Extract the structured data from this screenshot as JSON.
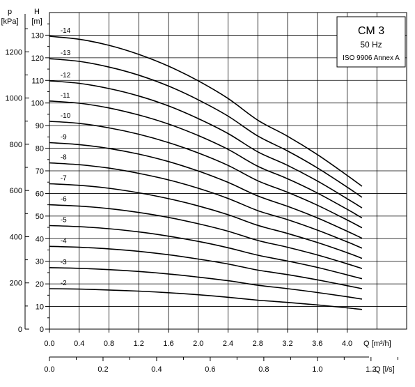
{
  "chart_data": {
    "type": "line",
    "legend": {
      "model": "CM 3",
      "frequency": "50 Hz",
      "standard": "ISO 9906 Annex A",
      "placement": "top-right"
    },
    "axes": {
      "y_left_outer": {
        "label_symbol": "p",
        "label_unit": "[kPa]",
        "ticks": [
          "0",
          "200",
          "400",
          "600",
          "800",
          "1000",
          "1200"
        ],
        "range": [
          0,
          1370
        ]
      },
      "y_left_inner": {
        "label_symbol": "H",
        "label_unit": "[m]",
        "ticks": [
          "0",
          "10",
          "20",
          "30",
          "40",
          "50",
          "60",
          "70",
          "80",
          "90",
          "100",
          "110",
          "120",
          "130"
        ],
        "range": [
          0,
          140
        ]
      },
      "x_bottom_upper": {
        "label": "Q [m³/h]",
        "ticks": [
          "0.0",
          "0.4",
          "0.8",
          "1.2",
          "1.6",
          "2.0",
          "2.4",
          "2.8",
          "3.2",
          "3.6",
          "4.0"
        ],
        "range": [
          0,
          4.8
        ]
      },
      "x_bottom_lower": {
        "label": "Q [l/s]",
        "ticks": [
          "0.0",
          "0.2",
          "0.4",
          "0.6",
          "0.8",
          "1.0",
          "1.2"
        ],
        "range": [
          0,
          1.333
        ]
      }
    },
    "grid": true,
    "x": [
      0.0,
      0.4,
      0.8,
      1.2,
      1.6,
      2.0,
      2.4,
      2.8,
      3.2,
      3.6,
      4.0,
      4.2
    ],
    "series": [
      {
        "name": "-14",
        "values": [
          129.5,
          128.2,
          125.5,
          121.5,
          116.3,
          109.8,
          102.0,
          92.4,
          85.3,
          77.2,
          68.0,
          63.2
        ]
      },
      {
        "name": "-13",
        "values": [
          119.6,
          118.4,
          115.9,
          112.3,
          107.5,
          101.4,
          94.2,
          85.4,
          78.8,
          71.3,
          62.8,
          58.3
        ]
      },
      {
        "name": "-12",
        "values": [
          109.8,
          108.7,
          106.4,
          103.1,
          98.7,
          93.1,
          86.5,
          78.4,
          72.4,
          65.5,
          57.7,
          53.6
        ]
      },
      {
        "name": "-11",
        "values": [
          100.9,
          99.9,
          97.8,
          94.7,
          90.7,
          85.6,
          79.5,
          72.0,
          66.5,
          60.2,
          53.0,
          49.2
        ]
      },
      {
        "name": "-10",
        "values": [
          91.9,
          91.0,
          89.0,
          86.2,
          82.5,
          77.9,
          72.4,
          65.6,
          60.5,
          54.8,
          48.3,
          44.8
        ]
      },
      {
        "name": "-9",
        "values": [
          82.5,
          81.6,
          79.9,
          77.4,
          74.1,
          69.9,
          64.9,
          58.9,
          54.3,
          49.2,
          43.3,
          40.2
        ]
      },
      {
        "name": "-8",
        "values": [
          73.5,
          72.7,
          71.2,
          68.9,
          66.0,
          62.3,
          57.8,
          52.4,
          48.4,
          43.8,
          38.6,
          35.8
        ]
      },
      {
        "name": "-7",
        "values": [
          64.3,
          63.6,
          62.3,
          60.3,
          57.7,
          54.5,
          50.6,
          45.9,
          42.3,
          38.3,
          33.8,
          31.3
        ]
      },
      {
        "name": "-6",
        "values": [
          55.0,
          54.4,
          53.3,
          51.6,
          49.4,
          46.6,
          43.3,
          39.2,
          36.2,
          32.8,
          28.9,
          26.8
        ]
      },
      {
        "name": "-5",
        "values": [
          45.8,
          45.3,
          44.4,
          43.0,
          41.1,
          38.8,
          36.0,
          32.7,
          30.1,
          27.3,
          24.0,
          22.3
        ]
      },
      {
        "name": "-4",
        "values": [
          36.6,
          36.2,
          35.5,
          34.4,
          32.9,
          31.0,
          28.8,
          26.1,
          24.1,
          21.8,
          19.2,
          17.9
        ]
      },
      {
        "name": "-3",
        "values": [
          27.2,
          26.9,
          26.3,
          25.5,
          24.4,
          23.0,
          21.4,
          19.4,
          17.9,
          16.2,
          14.3,
          13.3
        ]
      },
      {
        "name": "-2",
        "values": [
          17.9,
          17.7,
          17.3,
          16.8,
          16.1,
          15.2,
          14.1,
          12.8,
          11.8,
          10.7,
          9.4,
          8.7
        ]
      }
    ]
  }
}
